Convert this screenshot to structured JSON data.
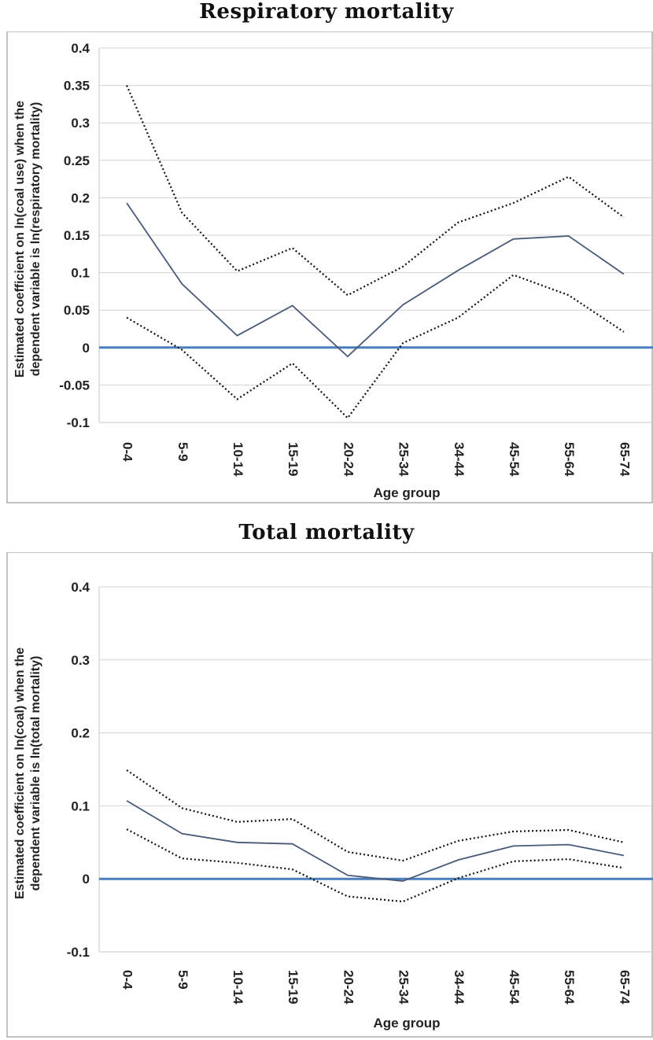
{
  "chart_data": [
    {
      "type": "line",
      "title": "Respiratory mortality",
      "xlabel": "Age group",
      "ylabel_lines": [
        "Estimated coefficient on ln(coal use) when the",
        "dependent variable is ln(respiratory mortality)"
      ],
      "categories": [
        "0-4",
        "5-9",
        "10-14",
        "15-19",
        "20-24",
        "25-34",
        "34-44",
        "45-54",
        "55-64",
        "65-74"
      ],
      "ylim": [
        -0.1,
        0.4
      ],
      "yticks": [
        -0.1,
        -0.05,
        0,
        0.05,
        0.1,
        0.15,
        0.2,
        0.25,
        0.3,
        0.35,
        0.4
      ],
      "ytick_labels": [
        "-0.1",
        "-0.05",
        "0",
        "0.05",
        "0.1",
        "0.15",
        "0.2",
        "0.25",
        "0.3",
        "0.35",
        "0.4"
      ],
      "grid": true,
      "zero_line_color": "#4a7ebb",
      "series": [
        {
          "role": "upper",
          "style": "dotted",
          "color": "#111111",
          "values": [
            0.35,
            0.18,
            0.102,
            0.133,
            0.07,
            0.108,
            0.167,
            0.193,
            0.228,
            0.174
          ]
        },
        {
          "role": "estimate",
          "style": "solid",
          "color": "#4a5a78",
          "values": [
            0.193,
            0.085,
            0.016,
            0.056,
            -0.012,
            0.057,
            0.103,
            0.145,
            0.149,
            0.098
          ]
        },
        {
          "role": "lower",
          "style": "dotted",
          "color": "#111111",
          "values": [
            0.04,
            -0.003,
            -0.069,
            -0.021,
            -0.094,
            0.006,
            0.04,
            0.097,
            0.07,
            0.021
          ]
        }
      ]
    },
    {
      "type": "line",
      "title": "Total mortality",
      "xlabel": "Age group",
      "ylabel_lines": [
        "Estimated coefficient on ln(coal) when the",
        "dependent variable is ln(total mortality)"
      ],
      "categories": [
        "0-4",
        "5-9",
        "10-14",
        "15-19",
        "20-24",
        "25-34",
        "34-44",
        "45-54",
        "55-64",
        "65-74"
      ],
      "ylim": [
        -0.1,
        0.4
      ],
      "yticks": [
        -0.1,
        0,
        0.1,
        0.2,
        0.3,
        0.4
      ],
      "ytick_labels": [
        "-0.1",
        "0",
        "0.1",
        "0.2",
        "0.3",
        "0.4"
      ],
      "grid": true,
      "zero_line_color": "#4a7ebb",
      "series": [
        {
          "role": "upper",
          "style": "dotted",
          "color": "#111111",
          "values": [
            0.149,
            0.097,
            0.078,
            0.082,
            0.037,
            0.025,
            0.052,
            0.065,
            0.067,
            0.05
          ]
        },
        {
          "role": "estimate",
          "style": "solid",
          "color": "#4a5a78",
          "values": [
            0.107,
            0.062,
            0.05,
            0.048,
            0.005,
            -0.003,
            0.026,
            0.045,
            0.047,
            0.032
          ]
        },
        {
          "role": "lower",
          "style": "dotted",
          "color": "#111111",
          "values": [
            0.068,
            0.028,
            0.022,
            0.013,
            -0.024,
            -0.031,
            0.001,
            0.024,
            0.027,
            0.015
          ]
        }
      ]
    }
  ]
}
